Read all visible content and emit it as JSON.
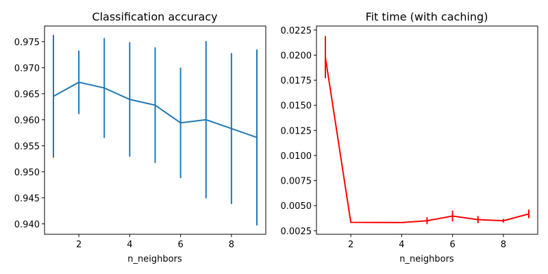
{
  "chart_data": [
    {
      "type": "line",
      "title": "Classification accuracy",
      "xlabel": "n_neighbors",
      "ylabel": "",
      "xlim": [
        0.65,
        9.35
      ],
      "ylim": [
        0.938,
        0.978
      ],
      "xticks": [
        2,
        4,
        6,
        8
      ],
      "yticks": [
        0.94,
        0.945,
        0.95,
        0.955,
        0.96,
        0.965,
        0.97,
        0.975
      ],
      "ytick_labels": [
        "0.940",
        "0.945",
        "0.950",
        "0.955",
        "0.960",
        "0.965",
        "0.970",
        "0.975"
      ],
      "color": "#1f77b4",
      "grid": false,
      "x": [
        1,
        2,
        3,
        4,
        5,
        6,
        7,
        8,
        9
      ],
      "y": [
        0.9645,
        0.9672,
        0.9661,
        0.9639,
        0.9628,
        0.9594,
        0.96,
        0.9583,
        0.9566
      ],
      "yerr": [
        0.0118,
        0.0061,
        0.0096,
        0.011,
        0.0111,
        0.0106,
        0.0151,
        0.0145,
        0.0169
      ]
    },
    {
      "type": "line",
      "title": "Fit time (with caching)",
      "xlabel": "n_neighbors",
      "ylabel": "",
      "xlim": [
        0.65,
        9.35
      ],
      "ylim": [
        0.00215,
        0.0229
      ],
      "xticks": [
        2,
        4,
        6,
        8
      ],
      "yticks": [
        0.0025,
        0.005,
        0.0075,
        0.01,
        0.0125,
        0.015,
        0.0175,
        0.02,
        0.0225
      ],
      "ytick_labels": [
        "0.0025",
        "0.0050",
        "0.0075",
        "0.0100",
        "0.0125",
        "0.0150",
        "0.0175",
        "0.0200",
        "0.0225"
      ],
      "color": "#ff0000",
      "grid": false,
      "x": [
        1,
        2,
        3,
        4,
        5,
        6,
        7,
        8,
        9
      ],
      "y": [
        0.0198,
        0.00334,
        0.00333,
        0.00332,
        0.0035,
        0.00397,
        0.00361,
        0.0035,
        0.00418
      ],
      "yerr": [
        0.0021,
        3e-05,
        3e-05,
        3e-05,
        0.00034,
        0.00054,
        0.00036,
        0.00018,
        0.00043
      ]
    }
  ]
}
